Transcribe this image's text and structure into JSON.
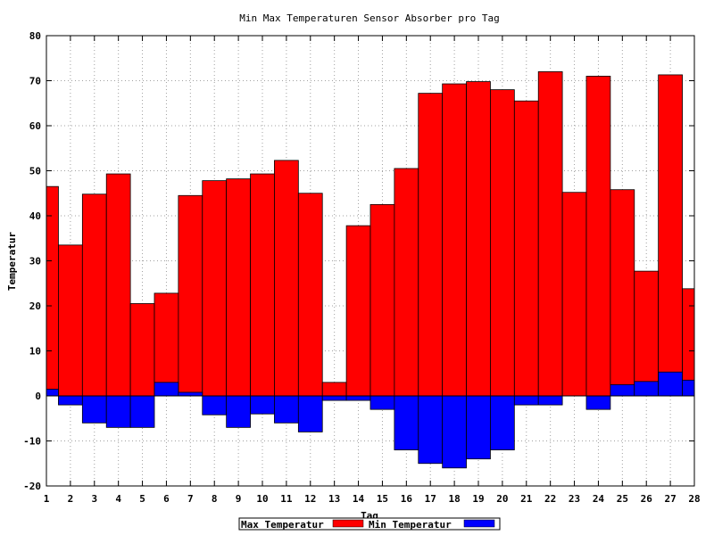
{
  "chart_data": {
    "type": "bar",
    "title": "Min Max Temperaturen Sensor Absorber pro Tag",
    "xlabel": "Tag",
    "ylabel": "Temperatur",
    "xlim": [
      1,
      28
    ],
    "ylim": [
      -20,
      80
    ],
    "x_ticks": [
      1,
      2,
      3,
      4,
      5,
      6,
      7,
      8,
      9,
      10,
      11,
      12,
      13,
      14,
      15,
      16,
      17,
      18,
      19,
      20,
      21,
      22,
      23,
      24,
      25,
      26,
      27,
      28
    ],
    "y_ticks": [
      -20,
      -10,
      0,
      10,
      20,
      30,
      40,
      50,
      60,
      70,
      80
    ],
    "grid": true,
    "legend": "bottom",
    "bar_edges": [
      1,
      1.5,
      2.5,
      3.5,
      4.5,
      5.5,
      6.5,
      7.5,
      8.5,
      9.5,
      10.5,
      11.5,
      12.5,
      13.5,
      14.5,
      15.5,
      16.5,
      17.5,
      18.5,
      19.5,
      20.5,
      21.5,
      22.5,
      23.5,
      24.5,
      25.5,
      26.5,
      27.5,
      28
    ],
    "series": [
      {
        "name": "Max Temperatur",
        "color": "#ff0000",
        "values": [
          46.5,
          33.5,
          44.8,
          49.3,
          20.5,
          22.8,
          44.5,
          47.8,
          48.2,
          49.3,
          52.3,
          45,
          3,
          37.8,
          42.5,
          50.5,
          67.2,
          69.3,
          69.8,
          68,
          65.5,
          72,
          45.2,
          71,
          45.8,
          27.7,
          71.3,
          23.8
        ]
      },
      {
        "name": "Min Temperatur",
        "color": "#0000ff",
        "values": [
          1.5,
          -2,
          -6,
          -7,
          -7,
          3,
          0.8,
          -4.2,
          -7,
          -4,
          -6,
          -8,
          -1,
          -1,
          -3,
          -12,
          -15,
          -16,
          -14,
          -12,
          -2,
          -2,
          0,
          -3,
          2.5,
          3.2,
          5.3,
          3.5
        ]
      }
    ]
  }
}
